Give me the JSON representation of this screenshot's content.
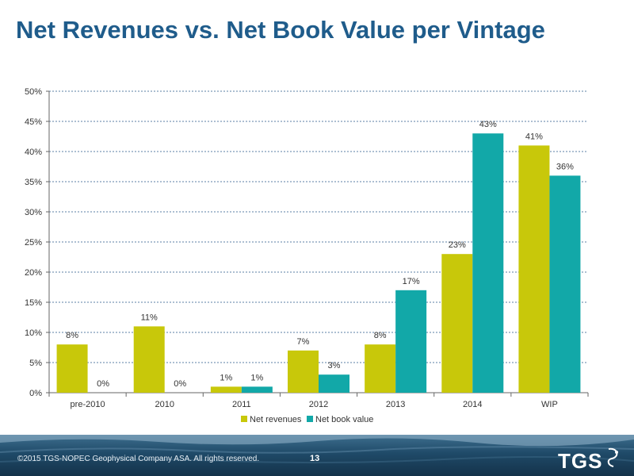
{
  "header": {
    "title": "Net Revenues vs. Net Book Value per Vintage"
  },
  "chart_data": {
    "type": "bar",
    "categories": [
      "pre-2010",
      "2010",
      "2011",
      "2012",
      "2013",
      "2014",
      "WIP"
    ],
    "series": [
      {
        "name": "Net revenues",
        "values": [
          8,
          11,
          1,
          7,
          8,
          23,
          41
        ],
        "labels": [
          "8%",
          "11%",
          "1%",
          "7%",
          "8%",
          "23%",
          "41%"
        ],
        "color": "#c8c80a"
      },
      {
        "name": "Net book value",
        "values": [
          0,
          0,
          1,
          3,
          17,
          43,
          36
        ],
        "labels": [
          "0%",
          "0%",
          "1%",
          "3%",
          "17%",
          "43%",
          "36%"
        ],
        "color": "#12a8a8"
      }
    ],
    "y_ticks": [
      "0%",
      "5%",
      "10%",
      "15%",
      "20%",
      "25%",
      "30%",
      "35%",
      "40%",
      "45%",
      "50%"
    ],
    "ylim": [
      0,
      50
    ],
    "grid": true,
    "legend_position": "bottom",
    "title": "",
    "xlabel": "",
    "ylabel": ""
  },
  "footer": {
    "copyright": "©2015 TGS-NOPEC Geophysical Company ASA. All rights reserved.",
    "page_number": "13",
    "logo_text": "TGS"
  },
  "colors": {
    "title": "#1f5c8b",
    "grid": "#5b7fa6",
    "axis": "#666666"
  }
}
